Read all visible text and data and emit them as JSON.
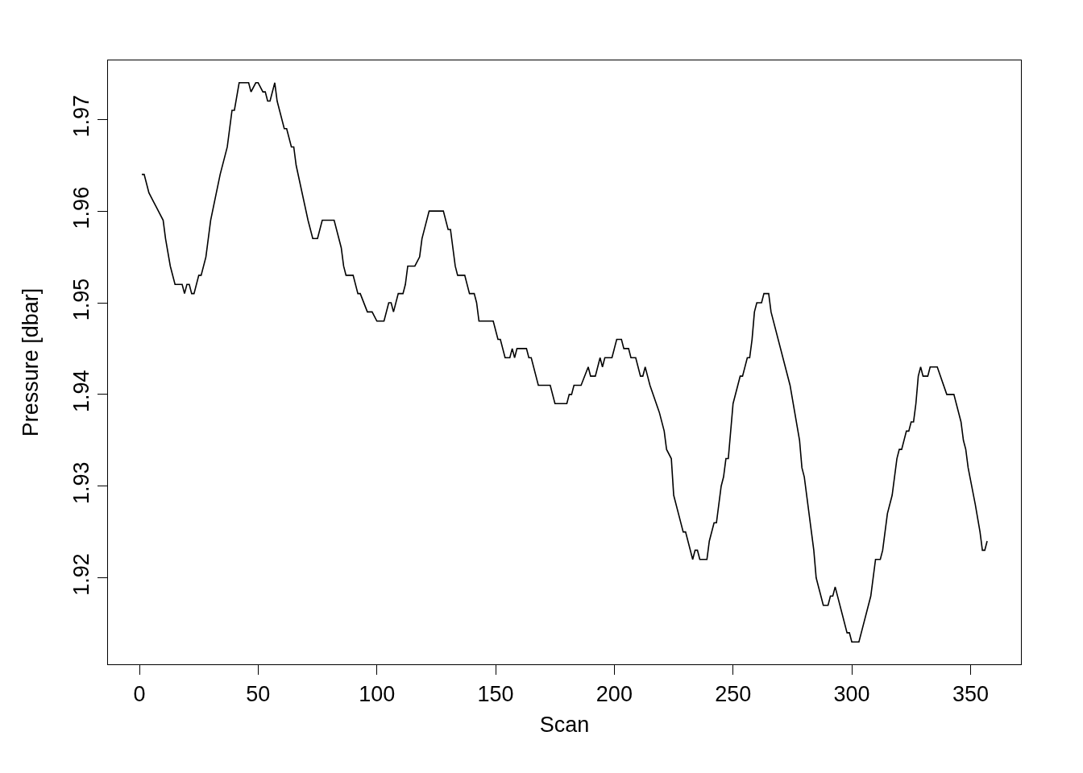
{
  "chart_data": {
    "type": "line",
    "xlabel": "Scan",
    "ylabel": "Pressure [dbar]",
    "x": [
      1,
      2,
      3,
      4,
      6,
      10,
      11,
      13,
      15,
      18,
      19,
      20,
      21,
      22,
      23,
      25,
      26,
      28,
      30,
      34,
      36,
      37,
      39,
      40,
      42,
      46,
      47,
      49,
      50,
      52,
      53,
      54,
      55,
      57,
      58,
      61,
      62,
      64,
      65,
      66,
      71,
      73,
      75,
      77,
      82,
      85,
      86,
      87,
      90,
      92,
      93,
      96,
      98,
      100,
      103,
      105,
      106,
      107,
      109,
      111,
      112,
      113,
      116,
      118,
      119,
      122,
      128,
      130,
      131,
      133,
      134,
      137,
      139,
      141,
      142,
      143,
      149,
      151,
      152,
      154,
      156,
      157,
      158,
      159,
      163,
      164,
      165,
      168,
      173,
      175,
      180,
      181,
      182,
      183,
      186,
      189,
      190,
      192,
      194,
      195,
      196,
      199,
      201,
      203,
      204,
      206,
      207,
      209,
      211,
      212,
      213,
      214,
      215,
      219,
      221,
      222,
      224,
      225,
      227,
      229,
      230,
      233,
      234,
      235,
      236,
      239,
      240,
      242,
      243,
      245,
      246,
      247,
      248,
      250,
      252,
      253,
      254,
      256,
      257,
      258,
      259,
      260,
      262,
      263,
      265,
      266,
      274,
      276,
      278,
      279,
      280,
      282,
      283,
      284,
      285,
      287,
      288,
      290,
      291,
      292,
      293,
      298,
      299,
      300,
      303,
      308,
      310,
      312,
      313,
      315,
      317,
      319,
      320,
      321,
      323,
      324,
      325,
      326,
      327,
      328,
      329,
      330,
      332,
      333,
      336,
      340,
      343,
      346,
      347,
      348,
      349,
      352,
      354,
      355,
      356,
      357
    ],
    "values": [
      1.964,
      1.964,
      1.963,
      1.962,
      1.961,
      1.959,
      1.957,
      1.954,
      1.952,
      1.952,
      1.951,
      1.952,
      1.952,
      1.951,
      1.951,
      1.953,
      1.953,
      1.955,
      1.959,
      1.964,
      1.966,
      1.967,
      1.971,
      1.971,
      1.974,
      1.974,
      1.973,
      1.974,
      1.974,
      1.973,
      1.973,
      1.972,
      1.972,
      1.974,
      1.972,
      1.969,
      1.969,
      1.967,
      1.967,
      1.965,
      1.959,
      1.957,
      1.957,
      1.959,
      1.959,
      1.956,
      1.954,
      1.953,
      1.953,
      1.951,
      1.951,
      1.949,
      1.949,
      1.948,
      1.948,
      1.95,
      1.95,
      1.949,
      1.951,
      1.951,
      1.952,
      1.954,
      1.954,
      1.955,
      1.957,
      1.96,
      1.96,
      1.958,
      1.958,
      1.954,
      1.953,
      1.953,
      1.951,
      1.951,
      1.95,
      1.948,
      1.948,
      1.946,
      1.946,
      1.944,
      1.944,
      1.945,
      1.944,
      1.945,
      1.945,
      1.944,
      1.944,
      1.941,
      1.941,
      1.939,
      1.939,
      1.94,
      1.94,
      1.941,
      1.941,
      1.943,
      1.942,
      1.942,
      1.944,
      1.943,
      1.944,
      1.944,
      1.946,
      1.946,
      1.945,
      1.945,
      1.944,
      1.944,
      1.942,
      1.942,
      1.943,
      1.942,
      1.941,
      1.938,
      1.936,
      1.934,
      1.933,
      1.929,
      1.927,
      1.925,
      1.925,
      1.922,
      1.923,
      1.923,
      1.922,
      1.922,
      1.924,
      1.926,
      1.926,
      1.93,
      1.931,
      1.933,
      1.933,
      1.939,
      1.941,
      1.942,
      1.942,
      1.944,
      1.944,
      1.946,
      1.949,
      1.95,
      1.95,
      1.951,
      1.951,
      1.949,
      1.941,
      1.938,
      1.935,
      1.932,
      1.931,
      1.927,
      1.925,
      1.923,
      1.92,
      1.918,
      1.917,
      1.917,
      1.918,
      1.918,
      1.919,
      1.914,
      1.914,
      1.913,
      1.913,
      1.918,
      1.922,
      1.922,
      1.923,
      1.927,
      1.929,
      1.933,
      1.934,
      1.934,
      1.936,
      1.936,
      1.937,
      1.937,
      1.939,
      1.942,
      1.943,
      1.942,
      1.942,
      1.943,
      1.943,
      1.94,
      1.94,
      1.937,
      1.935,
      1.934,
      1.932,
      1.928,
      1.925,
      1.923,
      1.923,
      1.924
    ],
    "color": "#000000",
    "line_style": "solid",
    "marker": "none",
    "xlim": [
      -13.24,
      371.24
    ],
    "xticks": [
      0,
      50,
      100,
      150,
      200,
      250,
      300,
      350
    ],
    "ylim": [
      1.91056,
      1.97644
    ],
    "yticks": [
      1.92,
      1.93,
      1.94,
      1.95,
      1.96,
      1.97
    ]
  }
}
